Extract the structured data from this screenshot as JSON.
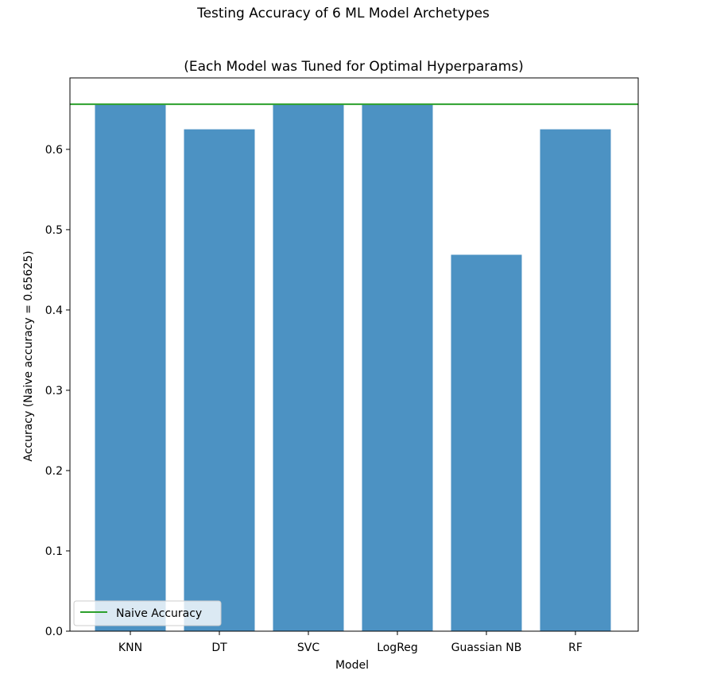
{
  "chart_data": {
    "type": "bar",
    "title": "Testing Accuracy of 6 ML Model Archetypes",
    "subtitle": "(Each Model was Tuned for Optimal Hyperparams)",
    "xlabel": "Model",
    "ylabel": "Accuracy (Naive accuracy = 0.65625)",
    "categories": [
      "KNN",
      "DT",
      "SVC",
      "LogReg",
      "Guassian NB",
      "RF"
    ],
    "values": [
      0.65625,
      0.625,
      0.65625,
      0.65625,
      0.46875,
      0.625
    ],
    "ylim": [
      0,
      0.689
    ],
    "yticks": [
      "0.0",
      "0.1",
      "0.2",
      "0.3",
      "0.4",
      "0.5",
      "0.6"
    ],
    "ytick_values": [
      0,
      0.1,
      0.2,
      0.3,
      0.4,
      0.5,
      0.6
    ],
    "reference_line": {
      "label": "Naive Accuracy",
      "value": 0.65625,
      "color": "#2ca02c"
    },
    "bar_color": "#1f77b4",
    "bar_opacity": 0.8,
    "legend_position": "lower left",
    "grid": false
  }
}
